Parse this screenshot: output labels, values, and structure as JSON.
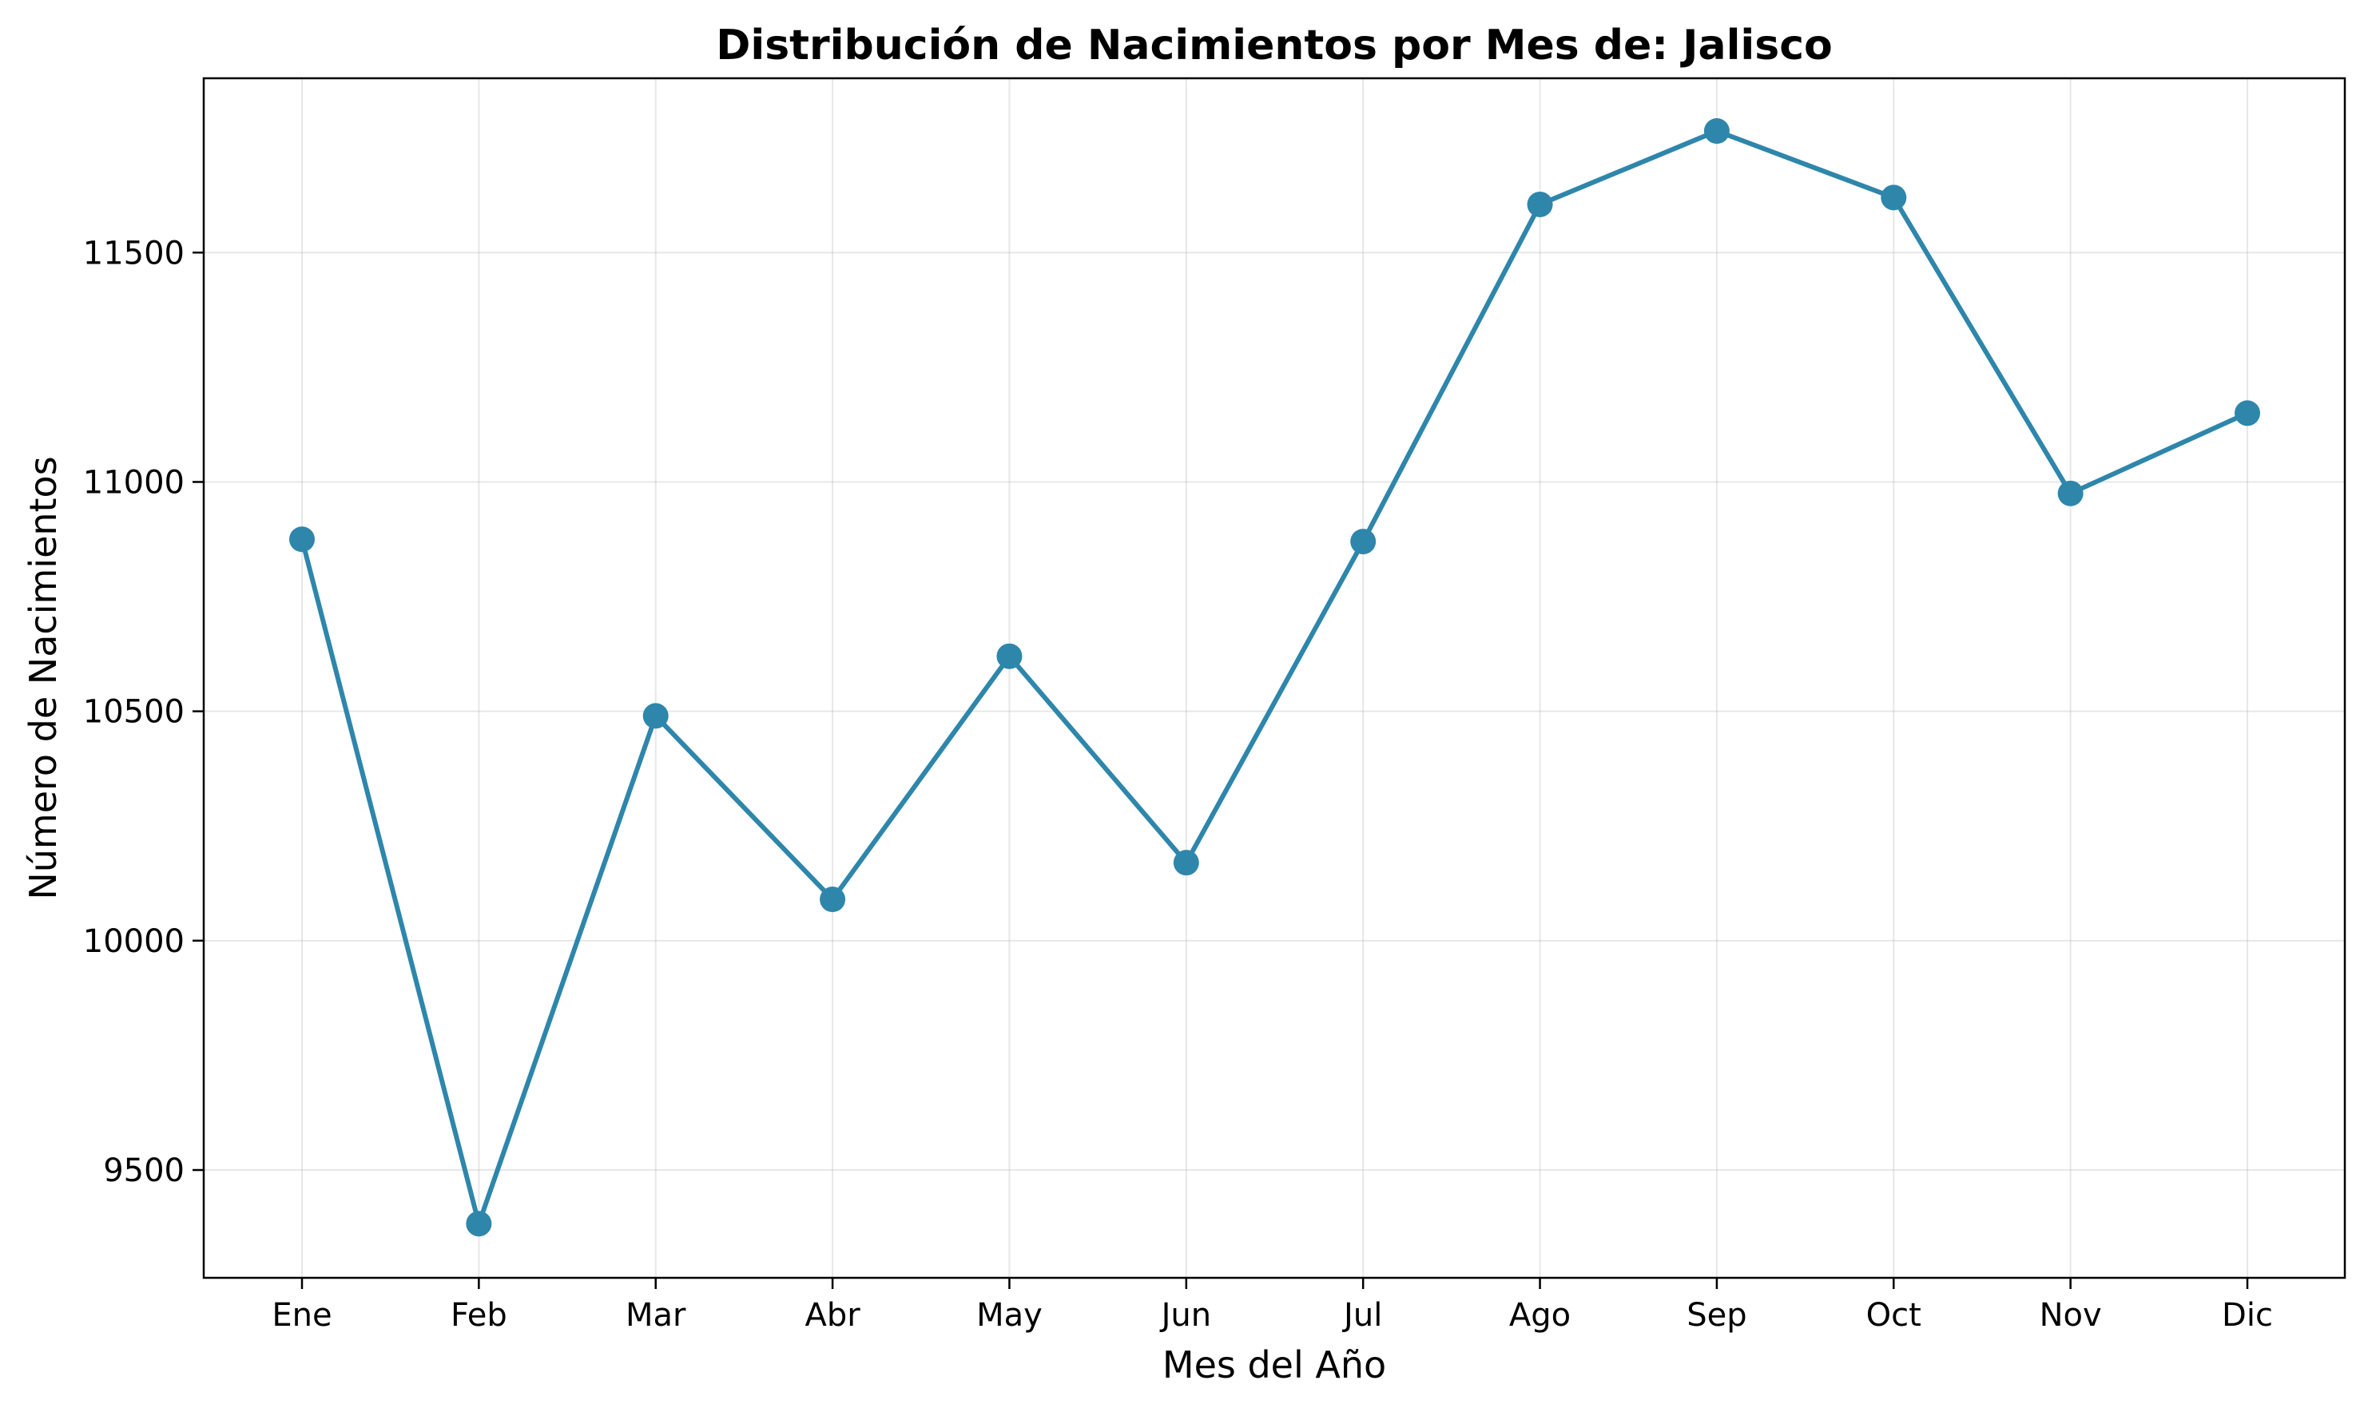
{
  "chart_data": {
    "type": "line",
    "title": "Distribución de Nacimientos por Mes de: Jalisco",
    "xlabel": "Mes del Año",
    "ylabel": "Número de Nacimientos",
    "categories": [
      "Ene",
      "Feb",
      "Mar",
      "Abr",
      "May",
      "Jun",
      "Jul",
      "Ago",
      "Sep",
      "Oct",
      "Nov",
      "Dic"
    ],
    "series": [
      {
        "name": "Nacimientos",
        "values": [
          10875,
          9383,
          10490,
          10090,
          10620,
          10170,
          10870,
          11605,
          11765,
          11620,
          10975,
          11150
        ]
      }
    ],
    "ylim": [
      9265,
      11880
    ],
    "yticks": [
      9500,
      10000,
      10500,
      11000,
      11500
    ],
    "ytick_labels": [
      "9500",
      "10000",
      "10500",
      "11000",
      "11500"
    ],
    "grid": true,
    "color": "#2e86ab"
  }
}
